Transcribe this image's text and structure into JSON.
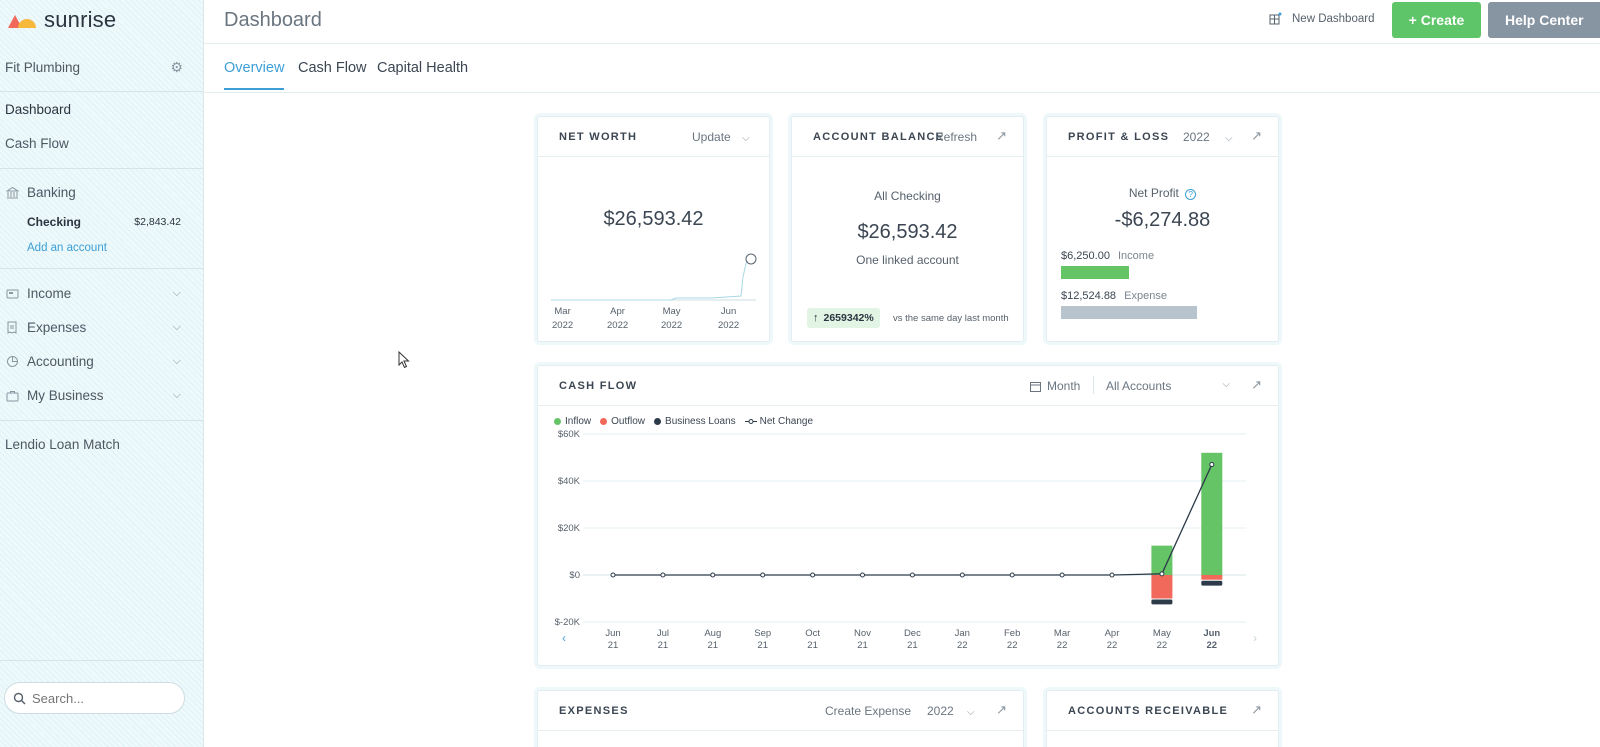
{
  "app": {
    "name": "sunrise"
  },
  "sidebar": {
    "business": "Fit Plumbing",
    "nav_top": [
      {
        "label": "Dashboard"
      },
      {
        "label": "Cash Flow"
      }
    ],
    "banking": {
      "label": "Banking",
      "account": {
        "name": "Checking",
        "balance": "$2,843.42"
      },
      "add_label": "Add an account"
    },
    "sections": [
      {
        "label": "Income"
      },
      {
        "label": "Expenses"
      },
      {
        "label": "Accounting"
      },
      {
        "label": "My Business"
      }
    ],
    "loan": "Lendio Loan Match",
    "search_placeholder": "Search..."
  },
  "header": {
    "title": "Dashboard",
    "new_dashboard": "New Dashboard",
    "create": "+ Create",
    "help": "Help Center"
  },
  "tabs": [
    {
      "label": "Overview",
      "active": true
    },
    {
      "label": "Cash Flow",
      "active": false
    },
    {
      "label": "Capital Health",
      "active": false
    }
  ],
  "net_worth": {
    "title": "NET WORTH",
    "action": "Update",
    "value": "$26,593.42",
    "months": [
      {
        "m": "Mar",
        "y": "2022"
      },
      {
        "m": "Apr",
        "y": "2022"
      },
      {
        "m": "May",
        "y": "2022"
      },
      {
        "m": "Jun",
        "y": "2022"
      }
    ]
  },
  "account_balance": {
    "title": "ACCOUNT BALANCE",
    "action": "Refresh",
    "label": "All Checking",
    "value": "$26,593.42",
    "sub": "One linked account",
    "change": "2659342%",
    "change_note": "vs the same day last month"
  },
  "profit_loss": {
    "title": "PROFIT & LOSS",
    "year": "2022",
    "label": "Net Profit",
    "value": "-$6,274.88",
    "income_value": "$6,250.00",
    "income_label": "Income",
    "expense_value": "$12,524.88",
    "expense_label": "Expense"
  },
  "cash_flow": {
    "title": "CASH FLOW",
    "period": "Month",
    "accounts": "All Accounts"
  },
  "colors": {
    "inflow": "#65c466",
    "outflow": "#f0695a",
    "loans": "#2d3a4a",
    "net": "#2d3a4a",
    "accent": "#3d9fd6"
  },
  "chart_data": {
    "type": "bar",
    "legend": [
      "Inflow",
      "Outflow",
      "Business Loans",
      "Net Change"
    ],
    "legend_position": "top-left",
    "y_ticks": [
      "$60K",
      "$40K",
      "$20K",
      "$0",
      "$-20K"
    ],
    "ylim": [
      -20000,
      60000
    ],
    "categories": [
      "Jun 21",
      "Jul 21",
      "Aug 21",
      "Sep 21",
      "Oct 21",
      "Nov 21",
      "Dec 21",
      "Jan 22",
      "Feb 22",
      "Mar 22",
      "Apr 22",
      "May 22",
      "Jun 22"
    ],
    "category_parts": [
      [
        "Jun",
        "21"
      ],
      [
        "Jul",
        "21"
      ],
      [
        "Aug",
        "21"
      ],
      [
        "Sep",
        "21"
      ],
      [
        "Oct",
        "21"
      ],
      [
        "Nov",
        "21"
      ],
      [
        "Dec",
        "21"
      ],
      [
        "Jan",
        "22"
      ],
      [
        "Feb",
        "22"
      ],
      [
        "Mar",
        "22"
      ],
      [
        "Apr",
        "22"
      ],
      [
        "May",
        "22"
      ],
      [
        "Jun",
        "22"
      ]
    ],
    "series": [
      {
        "name": "Inflow",
        "values": [
          0,
          0,
          0,
          0,
          0,
          0,
          0,
          0,
          0,
          0,
          0,
          12500,
          52000
        ]
      },
      {
        "name": "Outflow",
        "values": [
          0,
          0,
          0,
          0,
          0,
          0,
          0,
          0,
          0,
          0,
          0,
          -10000,
          -2000
        ]
      },
      {
        "name": "Business Loans",
        "values": [
          0,
          0,
          0,
          0,
          0,
          0,
          0,
          0,
          0,
          0,
          0,
          -2500,
          -2500
        ]
      },
      {
        "name": "Net Change",
        "values": [
          0,
          0,
          0,
          0,
          0,
          0,
          0,
          0,
          0,
          0,
          0,
          500,
          47000
        ]
      }
    ],
    "grid": true
  },
  "expenses": {
    "title": "EXPENSES",
    "action": "Create Expense",
    "year": "2022"
  },
  "receivable": {
    "title": "ACCOUNTS RECEIVABLE"
  }
}
